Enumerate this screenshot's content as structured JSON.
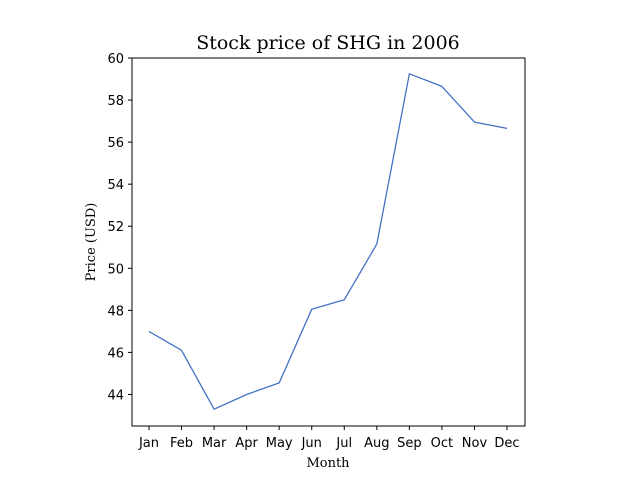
{
  "chart_data": {
    "type": "line",
    "title": "Stock price of SHG in 2006",
    "xlabel": "Month",
    "ylabel": "Price (USD)",
    "categories": [
      "Jan",
      "Feb",
      "Mar",
      "Apr",
      "May",
      "Jun",
      "Jul",
      "Aug",
      "Sep",
      "Oct",
      "Nov",
      "Dec"
    ],
    "series": [
      {
        "color": "#4472c4",
        "values": [
          47.0,
          46.1,
          43.3,
          44.0,
          44.55,
          48.05,
          48.5,
          51.15,
          59.25,
          58.65,
          56.95,
          56.65
        ]
      }
    ],
    "ylim": [
      42.5,
      60
    ],
    "yticks": [
      44,
      46,
      48,
      50,
      52,
      54,
      56,
      58,
      60
    ],
    "grid": false,
    "legend": "none"
  }
}
